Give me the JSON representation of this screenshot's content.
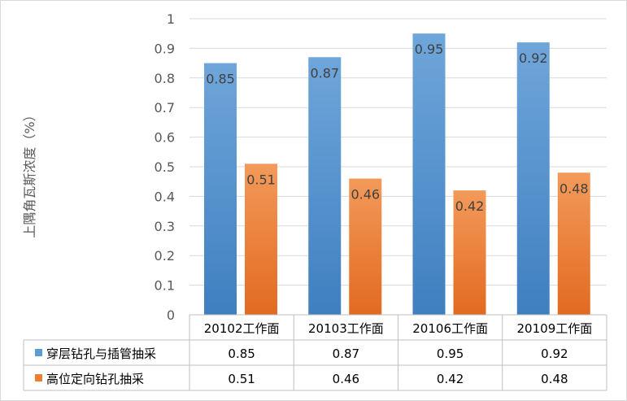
{
  "chart_data": {
    "type": "bar",
    "categories": [
      "20102工作面",
      "20103工作面",
      "20106工作面",
      "20109工作面"
    ],
    "series": [
      {
        "name": "穿层钻孔与插管抽采",
        "values": [
          0.85,
          0.87,
          0.95,
          0.92
        ],
        "color": "#5b9bd5"
      },
      {
        "name": "高位定向钻孔抽采",
        "values": [
          0.51,
          0.46,
          0.42,
          0.48
        ],
        "color": "#ed7d31"
      }
    ],
    "ylabel": "上隅角瓦斯浓度（%）",
    "ylim": [
      0,
      1
    ],
    "yticks": [
      "0",
      "0.1",
      "0.2",
      "0.3",
      "0.4",
      "0.5",
      "0.6",
      "0.7",
      "0.8",
      "0.9",
      "1"
    ],
    "data_labels": [
      [
        "0.85",
        "0.87",
        "0.95",
        "0.92"
      ],
      [
        "0.51",
        "0.46",
        "0.42",
        "0.48"
      ]
    ],
    "grid": true,
    "legend": "data-table"
  }
}
